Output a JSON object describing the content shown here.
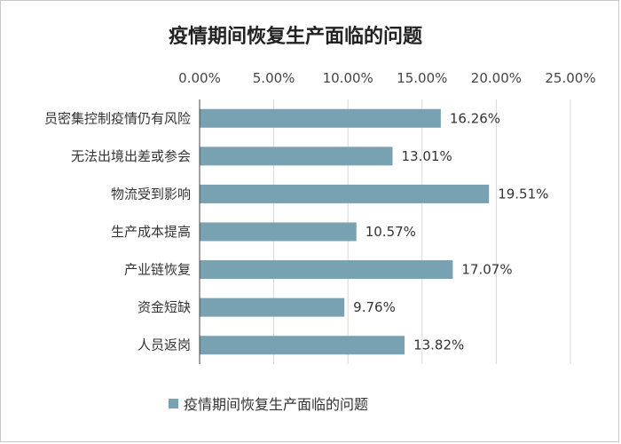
{
  "chart_data": {
    "type": "bar",
    "orientation": "horizontal",
    "title": "疫情期间恢复生产面临的问题",
    "categories": [
      "员密集控制疫情仍有风险",
      "无法出境出差或参会",
      "物流受到影响",
      "生产成本提高",
      "产业链恢复",
      "资金短缺",
      "人员返岗"
    ],
    "series": [
      {
        "name": "疫情期间恢复生产面临的问题",
        "values": [
          16.26,
          13.01,
          19.51,
          10.57,
          17.07,
          9.76,
          13.82
        ],
        "labels": [
          "16.26%",
          "13.01%",
          "19.51%",
          "10.57%",
          "17.07%",
          "9.76%",
          "13.82%"
        ]
      }
    ],
    "xlim": [
      0,
      25
    ],
    "x_ticks": [
      0,
      5,
      10,
      15,
      20,
      25
    ],
    "x_tick_labels": [
      "0.00%",
      "5.00%",
      "10.00%",
      "15.00%",
      "20.00%",
      "25.00%"
    ],
    "x_axis_position": "top",
    "grid": true,
    "legend_position": "bottom",
    "colors": {
      "bar": "#78a2b2",
      "grid": "#d9d9d9",
      "axis": "#444444"
    }
  }
}
